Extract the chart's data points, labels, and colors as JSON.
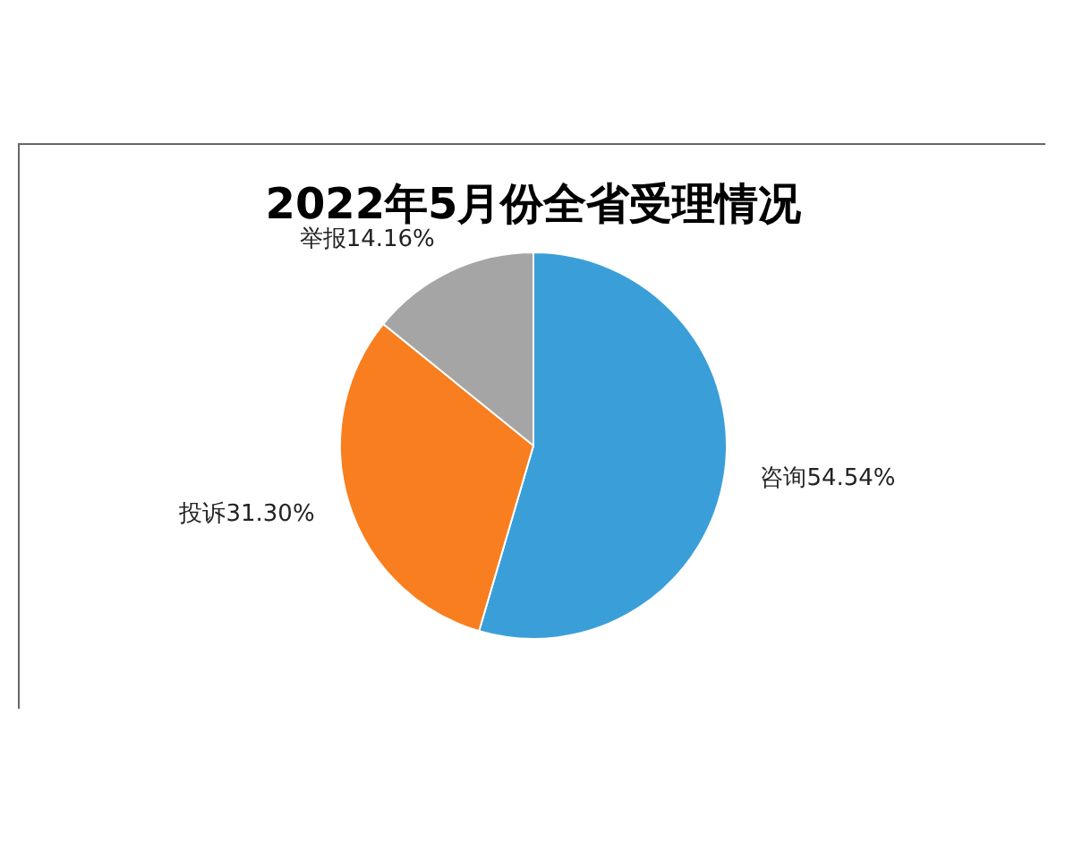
{
  "chart_data": {
    "type": "pie",
    "title": "2022年5月份全省受理情况",
    "categories": [
      "咨询",
      "投诉",
      "举报"
    ],
    "values": [
      54.54,
      31.3,
      14.16
    ],
    "colors": [
      "#3a9fd8",
      "#f87e1f",
      "#a5a5a5"
    ],
    "value_labels": [
      "54.54%",
      "31.30%",
      "14.16%"
    ]
  }
}
